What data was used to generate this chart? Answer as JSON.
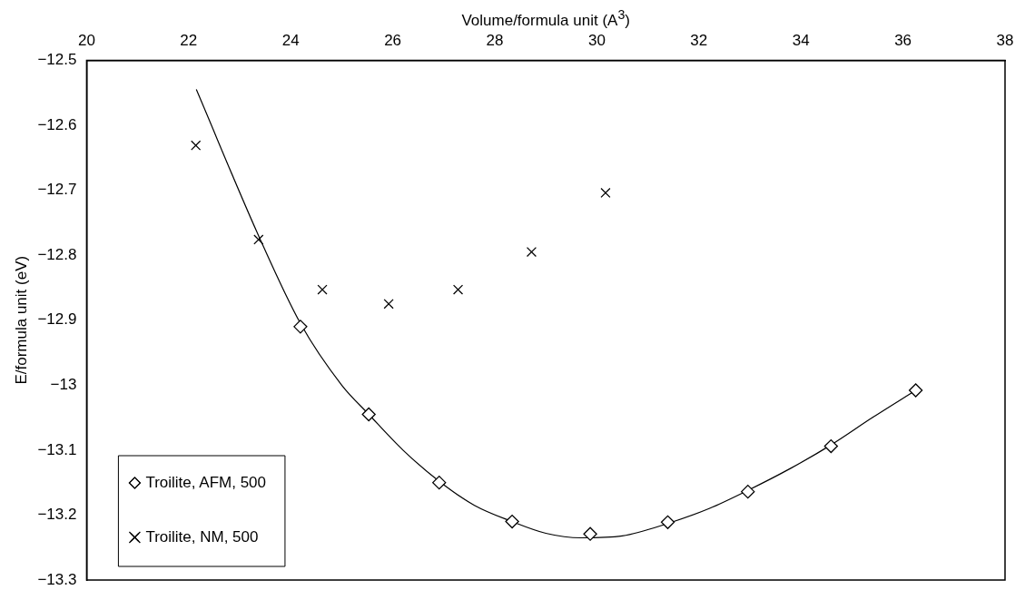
{
  "chart_data": {
    "type": "scatter",
    "xlabel": "Volume/formula unit (A$^{3}$)",
    "ylabel": "E/formula unit (eV)",
    "xlim": [
      20,
      38
    ],
    "xticks": [
      20,
      22,
      24,
      26,
      28,
      30,
      32,
      34,
      36,
      38
    ],
    "ylim": [
      -13.3,
      -12.5
    ],
    "yticks": [
      -13.3,
      -13.2,
      -13.1,
      -13,
      -12.9,
      -12.8,
      -12.7,
      -12.6,
      -12.5
    ],
    "grid": false,
    "legend": "bottom left",
    "series": [
      {
        "name": "Troilite, AFM, 500",
        "type": "scatter",
        "marker": "diamond",
        "color": "#000000",
        "x": [
          24.19,
          25.53,
          26.91,
          28.34,
          29.87,
          31.39,
          32.96,
          34.59,
          36.25
        ],
        "values": [
          -12.91,
          -13.045,
          -13.15,
          -13.21,
          -13.229,
          -13.211,
          -13.164,
          -13.094,
          -13.008
        ]
      },
      {
        "name": "Troilite, NM, 500",
        "type": "scatter",
        "marker": "cross",
        "color": "#000000",
        "x": [
          22.14,
          23.37,
          24.62,
          25.92,
          27.28,
          28.72,
          30.17
        ],
        "values": [
          -12.631,
          -12.776,
          -12.853,
          -12.875,
          -12.853,
          -12.795,
          -12.704
        ]
      },
      {
        "type": "line",
        "marker": "none",
        "color": "#000000",
        "x": [
          22.15,
          23.37,
          24.19,
          25,
          25.53,
          26.2,
          26.91,
          27.6,
          28.34,
          29,
          29.69,
          30.5,
          31.39,
          32.2,
          32.96,
          33.8,
          34.59,
          35.4,
          36.25
        ],
        "values": [
          -12.545,
          -12.77,
          -12.905,
          -13,
          -13.045,
          -13.1,
          -13.148,
          -13.185,
          -13.21,
          -13.228,
          -13.235,
          -13.232,
          -13.213,
          -13.19,
          -13.162,
          -13.128,
          -13.092,
          -13.05,
          -13.008
        ]
      }
    ]
  }
}
